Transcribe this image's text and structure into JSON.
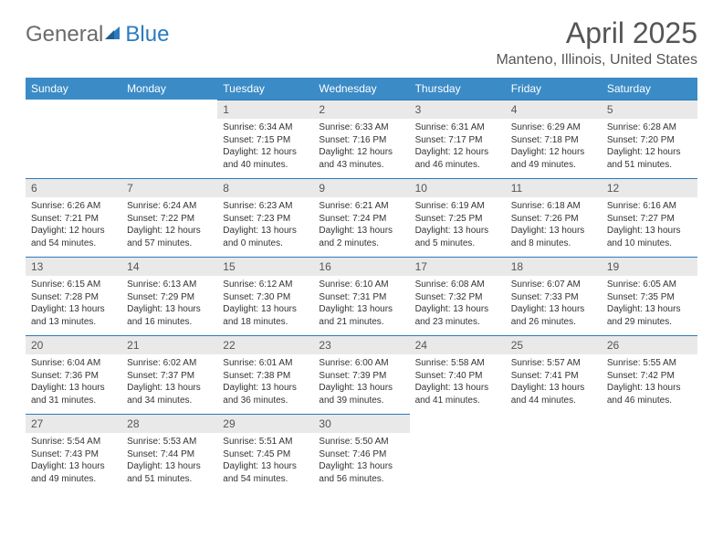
{
  "logo": {
    "text_a": "General",
    "text_b": "Blue"
  },
  "title": "April 2025",
  "location": "Manteno, Illinois, United States",
  "colors": {
    "header_bg": "#3b8bc7",
    "header_text": "#ffffff",
    "daynum_bg": "#e9e9e9",
    "daynum_border": "#2b7bbf",
    "body_text": "#333333",
    "title_text": "#555555",
    "logo_gray": "#6b6b6b",
    "logo_blue": "#2b7bbf",
    "page_bg": "#ffffff"
  },
  "typography": {
    "title_fontsize": 32,
    "location_fontsize": 16,
    "header_fontsize": 12,
    "daynum_fontsize": 12,
    "body_fontsize": 10
  },
  "weekdays": [
    "Sunday",
    "Monday",
    "Tuesday",
    "Wednesday",
    "Thursday",
    "Friday",
    "Saturday"
  ],
  "weeks": [
    [
      null,
      null,
      {
        "n": "1",
        "sunrise": "Sunrise: 6:34 AM",
        "sunset": "Sunset: 7:15 PM",
        "daylight": "Daylight: 12 hours and 40 minutes."
      },
      {
        "n": "2",
        "sunrise": "Sunrise: 6:33 AM",
        "sunset": "Sunset: 7:16 PM",
        "daylight": "Daylight: 12 hours and 43 minutes."
      },
      {
        "n": "3",
        "sunrise": "Sunrise: 6:31 AM",
        "sunset": "Sunset: 7:17 PM",
        "daylight": "Daylight: 12 hours and 46 minutes."
      },
      {
        "n": "4",
        "sunrise": "Sunrise: 6:29 AM",
        "sunset": "Sunset: 7:18 PM",
        "daylight": "Daylight: 12 hours and 49 minutes."
      },
      {
        "n": "5",
        "sunrise": "Sunrise: 6:28 AM",
        "sunset": "Sunset: 7:20 PM",
        "daylight": "Daylight: 12 hours and 51 minutes."
      }
    ],
    [
      {
        "n": "6",
        "sunrise": "Sunrise: 6:26 AM",
        "sunset": "Sunset: 7:21 PM",
        "daylight": "Daylight: 12 hours and 54 minutes."
      },
      {
        "n": "7",
        "sunrise": "Sunrise: 6:24 AM",
        "sunset": "Sunset: 7:22 PM",
        "daylight": "Daylight: 12 hours and 57 minutes."
      },
      {
        "n": "8",
        "sunrise": "Sunrise: 6:23 AM",
        "sunset": "Sunset: 7:23 PM",
        "daylight": "Daylight: 13 hours and 0 minutes."
      },
      {
        "n": "9",
        "sunrise": "Sunrise: 6:21 AM",
        "sunset": "Sunset: 7:24 PM",
        "daylight": "Daylight: 13 hours and 2 minutes."
      },
      {
        "n": "10",
        "sunrise": "Sunrise: 6:19 AM",
        "sunset": "Sunset: 7:25 PM",
        "daylight": "Daylight: 13 hours and 5 minutes."
      },
      {
        "n": "11",
        "sunrise": "Sunrise: 6:18 AM",
        "sunset": "Sunset: 7:26 PM",
        "daylight": "Daylight: 13 hours and 8 minutes."
      },
      {
        "n": "12",
        "sunrise": "Sunrise: 6:16 AM",
        "sunset": "Sunset: 7:27 PM",
        "daylight": "Daylight: 13 hours and 10 minutes."
      }
    ],
    [
      {
        "n": "13",
        "sunrise": "Sunrise: 6:15 AM",
        "sunset": "Sunset: 7:28 PM",
        "daylight": "Daylight: 13 hours and 13 minutes."
      },
      {
        "n": "14",
        "sunrise": "Sunrise: 6:13 AM",
        "sunset": "Sunset: 7:29 PM",
        "daylight": "Daylight: 13 hours and 16 minutes."
      },
      {
        "n": "15",
        "sunrise": "Sunrise: 6:12 AM",
        "sunset": "Sunset: 7:30 PM",
        "daylight": "Daylight: 13 hours and 18 minutes."
      },
      {
        "n": "16",
        "sunrise": "Sunrise: 6:10 AM",
        "sunset": "Sunset: 7:31 PM",
        "daylight": "Daylight: 13 hours and 21 minutes."
      },
      {
        "n": "17",
        "sunrise": "Sunrise: 6:08 AM",
        "sunset": "Sunset: 7:32 PM",
        "daylight": "Daylight: 13 hours and 23 minutes."
      },
      {
        "n": "18",
        "sunrise": "Sunrise: 6:07 AM",
        "sunset": "Sunset: 7:33 PM",
        "daylight": "Daylight: 13 hours and 26 minutes."
      },
      {
        "n": "19",
        "sunrise": "Sunrise: 6:05 AM",
        "sunset": "Sunset: 7:35 PM",
        "daylight": "Daylight: 13 hours and 29 minutes."
      }
    ],
    [
      {
        "n": "20",
        "sunrise": "Sunrise: 6:04 AM",
        "sunset": "Sunset: 7:36 PM",
        "daylight": "Daylight: 13 hours and 31 minutes."
      },
      {
        "n": "21",
        "sunrise": "Sunrise: 6:02 AM",
        "sunset": "Sunset: 7:37 PM",
        "daylight": "Daylight: 13 hours and 34 minutes."
      },
      {
        "n": "22",
        "sunrise": "Sunrise: 6:01 AM",
        "sunset": "Sunset: 7:38 PM",
        "daylight": "Daylight: 13 hours and 36 minutes."
      },
      {
        "n": "23",
        "sunrise": "Sunrise: 6:00 AM",
        "sunset": "Sunset: 7:39 PM",
        "daylight": "Daylight: 13 hours and 39 minutes."
      },
      {
        "n": "24",
        "sunrise": "Sunrise: 5:58 AM",
        "sunset": "Sunset: 7:40 PM",
        "daylight": "Daylight: 13 hours and 41 minutes."
      },
      {
        "n": "25",
        "sunrise": "Sunrise: 5:57 AM",
        "sunset": "Sunset: 7:41 PM",
        "daylight": "Daylight: 13 hours and 44 minutes."
      },
      {
        "n": "26",
        "sunrise": "Sunrise: 5:55 AM",
        "sunset": "Sunset: 7:42 PM",
        "daylight": "Daylight: 13 hours and 46 minutes."
      }
    ],
    [
      {
        "n": "27",
        "sunrise": "Sunrise: 5:54 AM",
        "sunset": "Sunset: 7:43 PM",
        "daylight": "Daylight: 13 hours and 49 minutes."
      },
      {
        "n": "28",
        "sunrise": "Sunrise: 5:53 AM",
        "sunset": "Sunset: 7:44 PM",
        "daylight": "Daylight: 13 hours and 51 minutes."
      },
      {
        "n": "29",
        "sunrise": "Sunrise: 5:51 AM",
        "sunset": "Sunset: 7:45 PM",
        "daylight": "Daylight: 13 hours and 54 minutes."
      },
      {
        "n": "30",
        "sunrise": "Sunrise: 5:50 AM",
        "sunset": "Sunset: 7:46 PM",
        "daylight": "Daylight: 13 hours and 56 minutes."
      },
      null,
      null,
      null
    ]
  ]
}
